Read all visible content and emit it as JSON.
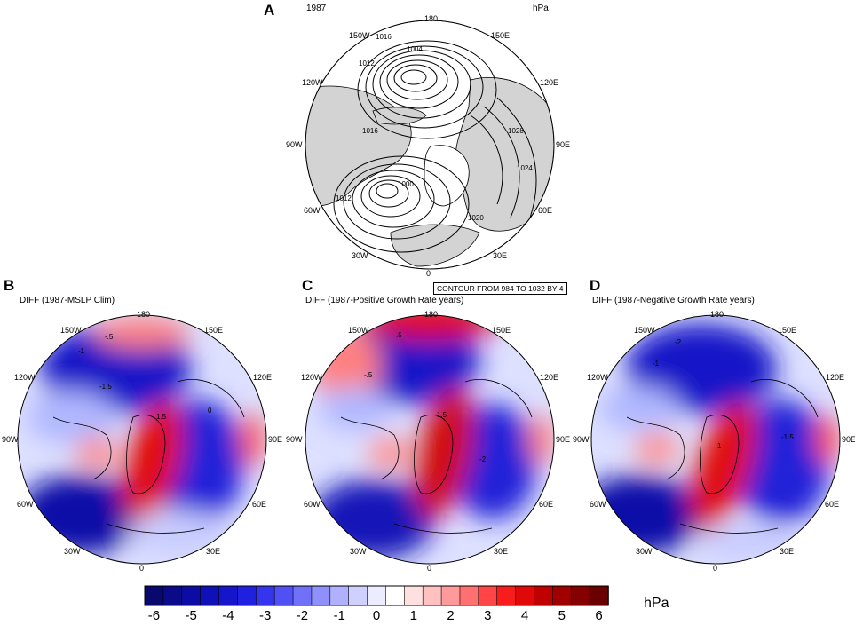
{
  "panels": [
    {
      "letter": "A",
      "subtitle": "1987",
      "unit": "hPa"
    },
    {
      "letter": "B",
      "subtitle": "DIFF (1987-MSLP Clim)"
    },
    {
      "letter": "C",
      "subtitle": "DIFF (1987-Positive Growth Rate years)"
    },
    {
      "letter": "D",
      "subtitle": "DIFF (1987-Negative Growth Rate years)"
    }
  ],
  "longitude_labels": {
    "180": "180",
    "150E": "150E",
    "120E": "120E",
    "90E": "90E",
    "60E": "60E",
    "30E": "30E",
    "0": "0",
    "30W": "30W",
    "60W": "60W",
    "90W": "90W",
    "120W": "120W",
    "150W": "150W"
  },
  "contour_info": "CONTOUR FROM 984 TO 1032 BY 4",
  "isobar_labels": [
    "1016",
    "1004",
    "1012",
    "1016",
    "1028",
    "1024",
    "1012",
    "1000",
    "1020"
  ],
  "diff_labels": {
    "m1": "-1",
    "m15": "-1.5",
    "m5": "-.5",
    "z": "0",
    "p5": ".5",
    "p1": "1",
    "p15": "1.5",
    "m2": "-2"
  },
  "colorbar": {
    "ticks": [
      "-6",
      "-5",
      "-4",
      "-3",
      "-2",
      "-1",
      "0",
      "1",
      "2",
      "3",
      "4",
      "5",
      "6"
    ],
    "unit": "hPa",
    "colors": [
      "#08086e",
      "#0a0a8a",
      "#0c0ca4",
      "#1010b8",
      "#1515cc",
      "#2020e0",
      "#3535ee",
      "#5050f5",
      "#7070f8",
      "#9090fa",
      "#b0b0fc",
      "#d0d0fe",
      "#ececff",
      "#ffffff",
      "#ffe0e0",
      "#ffc0c0",
      "#ff9a9a",
      "#ff7070",
      "#ff4545",
      "#f81c1c",
      "#e00808",
      "#c00000",
      "#a00000",
      "#850000",
      "#6a0000"
    ]
  }
}
